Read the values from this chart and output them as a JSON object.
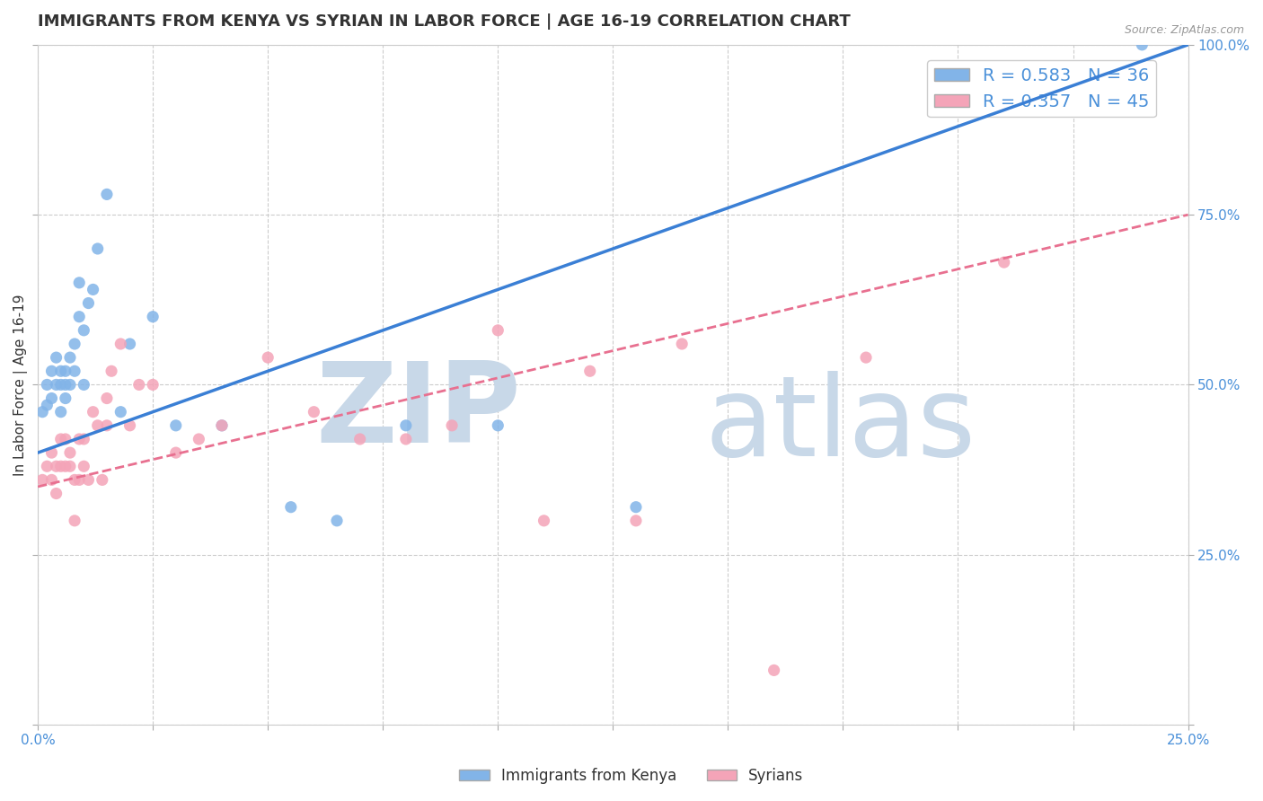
{
  "title": "IMMIGRANTS FROM KENYA VS SYRIAN IN LABOR FORCE | AGE 16-19 CORRELATION CHART",
  "source_text": "Source: ZipAtlas.com",
  "ylabel": "In Labor Force | Age 16-19",
  "xlim": [
    0.0,
    0.25
  ],
  "ylim": [
    0.0,
    1.0
  ],
  "kenya_color": "#82b4e8",
  "syrian_color": "#f4a4b8",
  "kenya_line_color": "#3a7fd5",
  "syrian_line_color": "#e87090",
  "kenya_R": 0.583,
  "kenya_N": 36,
  "syrian_R": 0.357,
  "syrian_N": 45,
  "kenya_scatter_x": [
    0.001,
    0.002,
    0.002,
    0.003,
    0.003,
    0.004,
    0.004,
    0.005,
    0.005,
    0.005,
    0.006,
    0.006,
    0.006,
    0.007,
    0.007,
    0.008,
    0.008,
    0.009,
    0.009,
    0.01,
    0.01,
    0.011,
    0.012,
    0.013,
    0.015,
    0.018,
    0.02,
    0.025,
    0.03,
    0.04,
    0.055,
    0.065,
    0.08,
    0.1,
    0.13,
    0.24
  ],
  "kenya_scatter_y": [
    0.46,
    0.47,
    0.5,
    0.48,
    0.52,
    0.5,
    0.54,
    0.46,
    0.5,
    0.52,
    0.48,
    0.5,
    0.52,
    0.5,
    0.54,
    0.52,
    0.56,
    0.6,
    0.65,
    0.5,
    0.58,
    0.62,
    0.64,
    0.7,
    0.78,
    0.46,
    0.56,
    0.6,
    0.44,
    0.44,
    0.32,
    0.3,
    0.44,
    0.44,
    0.32,
    1.0
  ],
  "syrian_scatter_x": [
    0.001,
    0.002,
    0.003,
    0.003,
    0.004,
    0.004,
    0.005,
    0.005,
    0.006,
    0.006,
    0.007,
    0.007,
    0.008,
    0.008,
    0.009,
    0.009,
    0.01,
    0.01,
    0.011,
    0.012,
    0.013,
    0.014,
    0.015,
    0.015,
    0.016,
    0.018,
    0.02,
    0.022,
    0.025,
    0.03,
    0.035,
    0.04,
    0.05,
    0.06,
    0.07,
    0.08,
    0.09,
    0.1,
    0.11,
    0.12,
    0.13,
    0.14,
    0.16,
    0.18,
    0.21
  ],
  "syrian_scatter_y": [
    0.36,
    0.38,
    0.36,
    0.4,
    0.34,
    0.38,
    0.38,
    0.42,
    0.38,
    0.42,
    0.38,
    0.4,
    0.3,
    0.36,
    0.36,
    0.42,
    0.38,
    0.42,
    0.36,
    0.46,
    0.44,
    0.36,
    0.44,
    0.48,
    0.52,
    0.56,
    0.44,
    0.5,
    0.5,
    0.4,
    0.42,
    0.44,
    0.54,
    0.46,
    0.42,
    0.42,
    0.44,
    0.58,
    0.3,
    0.52,
    0.3,
    0.56,
    0.08,
    0.54,
    0.68
  ],
  "watermark_zip": "ZIP",
  "watermark_atlas": "atlas",
  "watermark_color": "#c8d8e8",
  "background_color": "#ffffff",
  "grid_color": "#cccccc",
  "title_fontsize": 13,
  "axis_label_fontsize": 11,
  "tick_fontsize": 11,
  "legend_fontsize": 14
}
